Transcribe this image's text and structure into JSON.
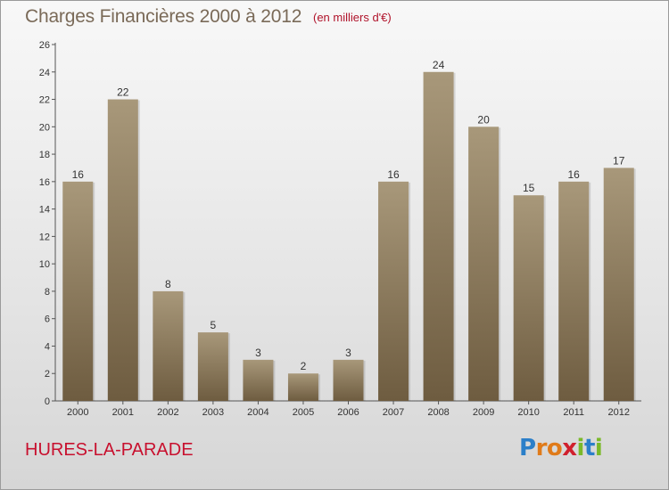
{
  "header": {
    "title": "Charges Financières 2000 à 2012",
    "unit": "(en milliers d'€)"
  },
  "footer": {
    "commune": "HURES-LA-PARADE",
    "logo_letters": [
      "P",
      "r",
      "o",
      "x",
      "i",
      "t",
      "i"
    ]
  },
  "colors": {
    "bar_top": "#a8987a",
    "bar_bottom": "#6e5c40",
    "title": "#7a6a58",
    "commune": "#c8102e"
  },
  "chart_data": {
    "type": "bar",
    "title": "Charges Financières 2000 à 2012",
    "subtitle": "(en milliers d'€)",
    "categories": [
      "2000",
      "2001",
      "2002",
      "2003",
      "2004",
      "2005",
      "2006",
      "2007",
      "2008",
      "2009",
      "2010",
      "2011",
      "2012"
    ],
    "values": [
      16,
      22,
      8,
      5,
      3,
      2,
      3,
      16,
      24,
      20,
      15,
      16,
      17
    ],
    "ylim": [
      0,
      26
    ],
    "yticks": [
      0,
      2,
      4,
      6,
      8,
      10,
      12,
      14,
      16,
      18,
      20,
      22,
      24,
      26
    ],
    "grid": false,
    "legend": "none",
    "data_labels": true
  }
}
